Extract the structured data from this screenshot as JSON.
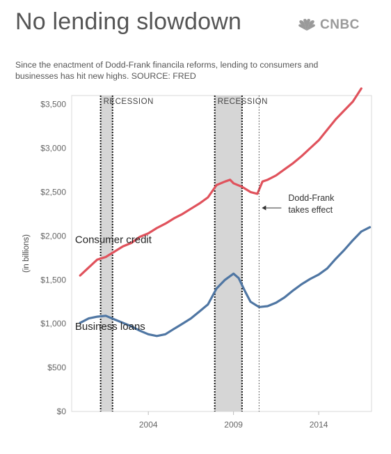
{
  "header": {
    "title": "No lending slowdown",
    "brand": "CNBC",
    "subtitle": "Since the enactment of Dodd-Frank financila reforms, lending to consumers and businesses has hit new highs. SOURCE: FRED"
  },
  "colors": {
    "consumer": "#e0525c",
    "business": "#4f76a3",
    "recession_fill": "#d6d6d6",
    "brand": "#9a9a9a"
  },
  "chart_data": {
    "type": "line",
    "xlabel": "",
    "ylabel": "(in billions)",
    "xlim": [
      1999.5,
      2017.1
    ],
    "ylim": [
      0,
      3600
    ],
    "x_ticks": [
      2004,
      2009,
      2014
    ],
    "x_tick_labels": [
      "2004",
      "2009",
      "2014"
    ],
    "y_ticks": [
      0,
      500,
      1000,
      1500,
      2000,
      2500,
      3000,
      3500
    ],
    "y_tick_labels": [
      "$0",
      "$500",
      "$1,000",
      "$1,500",
      "$2,000",
      "$2,500",
      "$3,000",
      "$3,500"
    ],
    "recessions": [
      {
        "label": "RECESSION",
        "start": 2001.2,
        "end": 2001.9
      },
      {
        "label": "RECESSION",
        "start": 2007.9,
        "end": 2009.5
      }
    ],
    "annotations": [
      {
        "text_lines": [
          "Dodd-Frank",
          "takes effect"
        ],
        "x": 2010.5,
        "y": 2320
      }
    ],
    "series": [
      {
        "name": "Consumer credit",
        "key": "consumer",
        "points": [
          [
            2000.0,
            1550
          ],
          [
            2000.5,
            1640
          ],
          [
            2001.0,
            1730
          ],
          [
            2001.5,
            1760
          ],
          [
            2002.0,
            1820
          ],
          [
            2002.5,
            1880
          ],
          [
            2003.0,
            1920
          ],
          [
            2003.5,
            1990
          ],
          [
            2004.0,
            2030
          ],
          [
            2004.5,
            2090
          ],
          [
            2005.0,
            2140
          ],
          [
            2005.5,
            2200
          ],
          [
            2006.0,
            2250
          ],
          [
            2006.5,
            2310
          ],
          [
            2007.0,
            2370
          ],
          [
            2007.5,
            2440
          ],
          [
            2008.0,
            2580
          ],
          [
            2008.5,
            2620
          ],
          [
            2008.8,
            2640
          ],
          [
            2009.0,
            2600
          ],
          [
            2009.5,
            2560
          ],
          [
            2010.0,
            2500
          ],
          [
            2010.4,
            2480
          ],
          [
            2010.7,
            2620
          ],
          [
            2011.0,
            2640
          ],
          [
            2011.5,
            2690
          ],
          [
            2012.0,
            2760
          ],
          [
            2012.5,
            2830
          ],
          [
            2013.0,
            2910
          ],
          [
            2013.5,
            3000
          ],
          [
            2014.0,
            3090
          ],
          [
            2014.5,
            3210
          ],
          [
            2015.0,
            3330
          ],
          [
            2015.5,
            3430
          ],
          [
            2016.0,
            3530
          ],
          [
            2016.5,
            3680
          ]
        ]
      },
      {
        "name": "Business loans",
        "key": "business",
        "points": [
          [
            2000.0,
            1010
          ],
          [
            2000.5,
            1060
          ],
          [
            2001.0,
            1080
          ],
          [
            2001.5,
            1090
          ],
          [
            2002.0,
            1050
          ],
          [
            2002.5,
            1010
          ],
          [
            2003.0,
            970
          ],
          [
            2003.5,
            920
          ],
          [
            2004.0,
            880
          ],
          [
            2004.5,
            860
          ],
          [
            2005.0,
            880
          ],
          [
            2005.5,
            940
          ],
          [
            2006.0,
            1000
          ],
          [
            2006.5,
            1060
          ],
          [
            2007.0,
            1140
          ],
          [
            2007.5,
            1220
          ],
          [
            2008.0,
            1400
          ],
          [
            2008.5,
            1500
          ],
          [
            2009.0,
            1570
          ],
          [
            2009.3,
            1520
          ],
          [
            2009.7,
            1360
          ],
          [
            2010.0,
            1250
          ],
          [
            2010.5,
            1190
          ],
          [
            2011.0,
            1200
          ],
          [
            2011.5,
            1240
          ],
          [
            2012.0,
            1300
          ],
          [
            2012.5,
            1380
          ],
          [
            2013.0,
            1450
          ],
          [
            2013.5,
            1510
          ],
          [
            2014.0,
            1560
          ],
          [
            2014.5,
            1630
          ],
          [
            2015.0,
            1740
          ],
          [
            2015.5,
            1840
          ],
          [
            2016.0,
            1950
          ],
          [
            2016.5,
            2050
          ],
          [
            2017.0,
            2100
          ]
        ]
      }
    ],
    "series_labels": [
      {
        "text": "Consumer credit",
        "x": 1999.7,
        "y": 1920
      },
      {
        "text": "Business loans",
        "x": 1999.7,
        "y": 930
      }
    ]
  }
}
